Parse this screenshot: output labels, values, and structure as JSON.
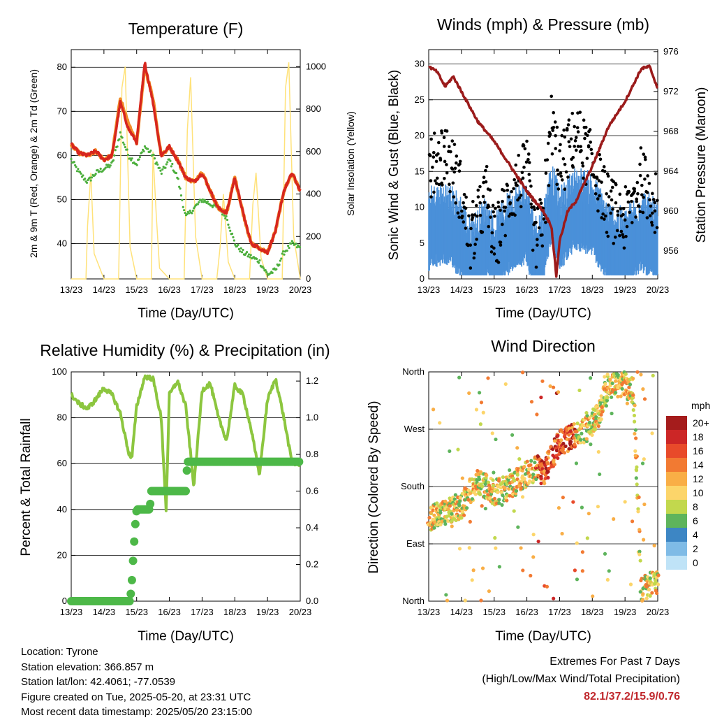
{
  "colors": {
    "temp_red": "#d7261e",
    "temp_orange": "#f28c28",
    "dewpoint_green": "#4caf3d",
    "solar_yellow": "#ffe27a",
    "wind_blue": "#4a90d9",
    "gust_black": "#000000",
    "pressure_maroon": "#9b1b1b",
    "rh_lightgreen": "#8cc63f",
    "precip_green": "#4db848",
    "extremes_red": "#c0282d"
  },
  "time_ticks": [
    "13/23",
    "14/23",
    "15/23",
    "16/23",
    "17/23",
    "18/23",
    "19/23",
    "20/23"
  ],
  "chart_data": [
    {
      "id": "temperature",
      "type": "line",
      "title": "Temperature (F)",
      "xlabel": "Time (Day/UTC)",
      "ylabel": "2m & 9m T (Red, Orange) & 2m Td (Green)",
      "ylabel_right": "Solar Insolation (Yellow)",
      "x": [
        0,
        0.25,
        0.5,
        0.75,
        1,
        1.25,
        1.5,
        1.75,
        2,
        2.25,
        2.5,
        2.75,
        3,
        3.25,
        3.5,
        3.75,
        4,
        4.25,
        4.5,
        4.75,
        5,
        5.25,
        5.5,
        5.75,
        6,
        6.25,
        6.5,
        6.75,
        7
      ],
      "ylim": [
        32,
        84
      ],
      "yticks": [
        40,
        50,
        60,
        70,
        80
      ],
      "ylim_right": [
        0,
        1080
      ],
      "yticks_right": [
        0,
        200,
        400,
        600,
        800,
        1000
      ],
      "series": [
        {
          "name": "2m T",
          "values": [
            62.5,
            60.5,
            60,
            61,
            59,
            60,
            72,
            66,
            63,
            81,
            72,
            60,
            62,
            59,
            55,
            54,
            56,
            52,
            48,
            47,
            55,
            47,
            40,
            39,
            38,
            43,
            52,
            56,
            52
          ],
          "color": "#d7261e"
        },
        {
          "name": "9m T",
          "values": [
            62.5,
            60.5,
            60,
            61,
            59,
            60,
            73,
            67,
            63,
            80,
            73,
            60,
            62,
            59,
            55,
            54,
            56,
            52,
            48,
            47,
            55,
            47,
            40,
            39,
            38,
            43,
            52,
            56,
            52
          ],
          "color": "#f28c28"
        },
        {
          "name": "2m Td",
          "values": [
            59,
            56,
            54,
            56,
            57,
            58,
            65,
            60,
            58,
            62,
            60,
            56,
            59,
            55,
            46,
            48,
            50,
            49,
            48,
            46,
            40,
            38,
            37,
            36,
            33,
            34,
            38,
            40,
            39
          ],
          "color": "#4caf3d"
        }
      ],
      "series_right": [
        {
          "name": "Solar Insolation",
          "x": [
            0,
            0.45,
            0.5,
            0.6,
            0.7,
            1,
            1.45,
            1.55,
            1.65,
            1.8,
            2,
            2.45,
            2.5,
            2.6,
            2.7,
            3,
            3.45,
            3.55,
            3.65,
            3.8,
            4,
            4.45,
            4.55,
            4.65,
            4.8,
            5,
            5.45,
            5.55,
            5.65,
            5.8,
            6,
            6.45,
            6.55,
            6.65,
            6.8,
            7
          ],
          "values": [
            0,
            0,
            250,
            500,
            120,
            0,
            0,
            900,
            1000,
            150,
            0,
            0,
            600,
            300,
            50,
            0,
            0,
            700,
            950,
            200,
            0,
            0,
            150,
            400,
            80,
            0,
            0,
            350,
            500,
            100,
            0,
            0,
            900,
            1020,
            200,
            0
          ],
          "color": "#ffe27a"
        }
      ]
    },
    {
      "id": "winds",
      "type": "scatter",
      "title": "Winds (mph) & Pressure (mb)",
      "xlabel": "Time (Day/UTC)",
      "ylabel": "Sonic Wind & Gust (Blue, Black)",
      "ylabel_right": "Station Pressure (Maroon)",
      "ylim": [
        0,
        32
      ],
      "yticks": [
        0,
        5,
        10,
        15,
        20,
        25,
        30
      ],
      "ylim_right": [
        953.2,
        976.2
      ],
      "yticks_right": [
        956,
        960,
        964,
        968,
        972,
        976
      ],
      "wind_envelope": {
        "x": [
          0,
          0.5,
          1,
          1.25,
          1.5,
          1.75,
          2,
          2.5,
          3,
          3.25,
          3.5,
          3.75,
          4,
          4.5,
          5,
          5.5,
          6,
          6.5,
          7
        ],
        "values": [
          6,
          7,
          5,
          2,
          3,
          5,
          2,
          6,
          7,
          2,
          4,
          10,
          6,
          9,
          8,
          4,
          3,
          6,
          4
        ]
      },
      "gust_envelope": {
        "x": [
          0,
          0.5,
          1,
          1.25,
          1.5,
          1.75,
          2,
          2.5,
          3,
          3.25,
          3.5,
          3.75,
          4,
          4.25,
          4.5,
          5,
          5.5,
          6,
          6.5,
          7
        ],
        "values": [
          15,
          18,
          12,
          5,
          8,
          12,
          5,
          12,
          15,
          5,
          8,
          22,
          15,
          18,
          20,
          16,
          10,
          8,
          14,
          10
        ]
      },
      "pressure": {
        "x": [
          0,
          0.25,
          0.5,
          0.75,
          1,
          1.5,
          2,
          2.5,
          3,
          3.25,
          3.5,
          3.75,
          3.9,
          4,
          4.25,
          4.5,
          5,
          5.5,
          6,
          6.5,
          6.75,
          7
        ],
        "values": [
          974.5,
          974,
          972.5,
          973.5,
          972,
          969,
          967,
          964.5,
          962,
          961,
          960,
          958.5,
          953.5,
          957,
          960,
          961,
          964.5,
          968.5,
          971,
          974.3,
          974.5,
          972.3
        ]
      }
    },
    {
      "id": "humidity",
      "type": "line",
      "title": "Relative Humidity (%) & Precipitation (in)",
      "xlabel": "Time (Day/UTC)",
      "ylabel": "Percent & Total Rainfall",
      "ylim": [
        0,
        100
      ],
      "yticks": [
        0,
        20,
        40,
        60,
        80,
        100
      ],
      "ylim_right": [
        0,
        1.25
      ],
      "yticks_right": [
        0.0,
        0.2,
        0.4,
        0.6,
        0.8,
        1.0,
        1.2
      ],
      "series": [
        {
          "name": "Relative Humidity",
          "x": [
            0,
            0.25,
            0.5,
            0.75,
            1,
            1.25,
            1.5,
            1.75,
            1.85,
            2,
            2.25,
            2.5,
            2.75,
            2.9,
            3,
            3.25,
            3.5,
            3.75,
            4,
            4.25,
            4.5,
            4.75,
            5,
            5.25,
            5.5,
            5.75,
            6,
            6.25,
            6.5,
            6.75,
            7
          ],
          "values": [
            90,
            86,
            84,
            88,
            93,
            90,
            82,
            65,
            62,
            85,
            98,
            97,
            80,
            40,
            90,
            96,
            85,
            50,
            92,
            95,
            80,
            70,
            94,
            90,
            75,
            55,
            88,
            97,
            80,
            60,
            60
          ],
          "color": "#8cc63f"
        },
        {
          "name": "Total Precipitation",
          "x": [
            0,
            1.8,
            1.85,
            1.9,
            1.95,
            2,
            2.4,
            2.45,
            3.5,
            3.55,
            7
          ],
          "values": [
            0,
            0,
            0.1,
            0.25,
            0.4,
            0.5,
            0.5,
            0.6,
            0.6,
            0.76,
            0.76
          ],
          "color": "#4db848"
        }
      ]
    },
    {
      "id": "direction",
      "type": "scatter",
      "title": "Wind Direction",
      "xlabel": "Time (Day/UTC)",
      "ylabel": "Direction (Colored By Speed)",
      "ytick_labels": [
        "North",
        "East",
        "South",
        "West",
        "North"
      ],
      "ylim": [
        0,
        360
      ],
      "legend_title": "mph",
      "legend_labels": [
        "20+",
        "18",
        "16",
        "14",
        "12",
        "10",
        "8",
        "6",
        "4",
        "2",
        "0"
      ],
      "legend_colors": [
        "#a51c1c",
        "#cc2626",
        "#e84a2a",
        "#f27a32",
        "#f9ae46",
        "#fcd56a",
        "#c2d84d",
        "#5eb45c",
        "#3d86c4",
        "#7fbbe6",
        "#bfe3f7"
      ],
      "direction_envelope": {
        "x": [
          0,
          0.5,
          1,
          1.5,
          2,
          2.5,
          3,
          3.3,
          3.5,
          4,
          4.5,
          5,
          5.25,
          5.5,
          6,
          6.25,
          6.5,
          7
        ],
        "values": [
          130,
          140,
          150,
          190,
          170,
          180,
          200,
          210,
          200,
          250,
          260,
          280,
          300,
          340,
          340,
          330,
          20,
          30
        ]
      }
    }
  ],
  "footer": {
    "location": "Location: Tyrone",
    "elevation": "Station elevation: 366.857 m",
    "latlon": "Station lat/lon: 42.4061; -77.0539",
    "created": "Figure created on Tue, 2025-05-20, at 23:31 UTC",
    "recent": "Most recent data timestamp: 2025/05/20 23:15:00"
  },
  "extremes": {
    "title": "Extremes For Past 7 Days",
    "subtitle": "(High/Low/Max Wind/Total Precipitation)",
    "values": "82.1/37.2/15.9/0.76"
  }
}
